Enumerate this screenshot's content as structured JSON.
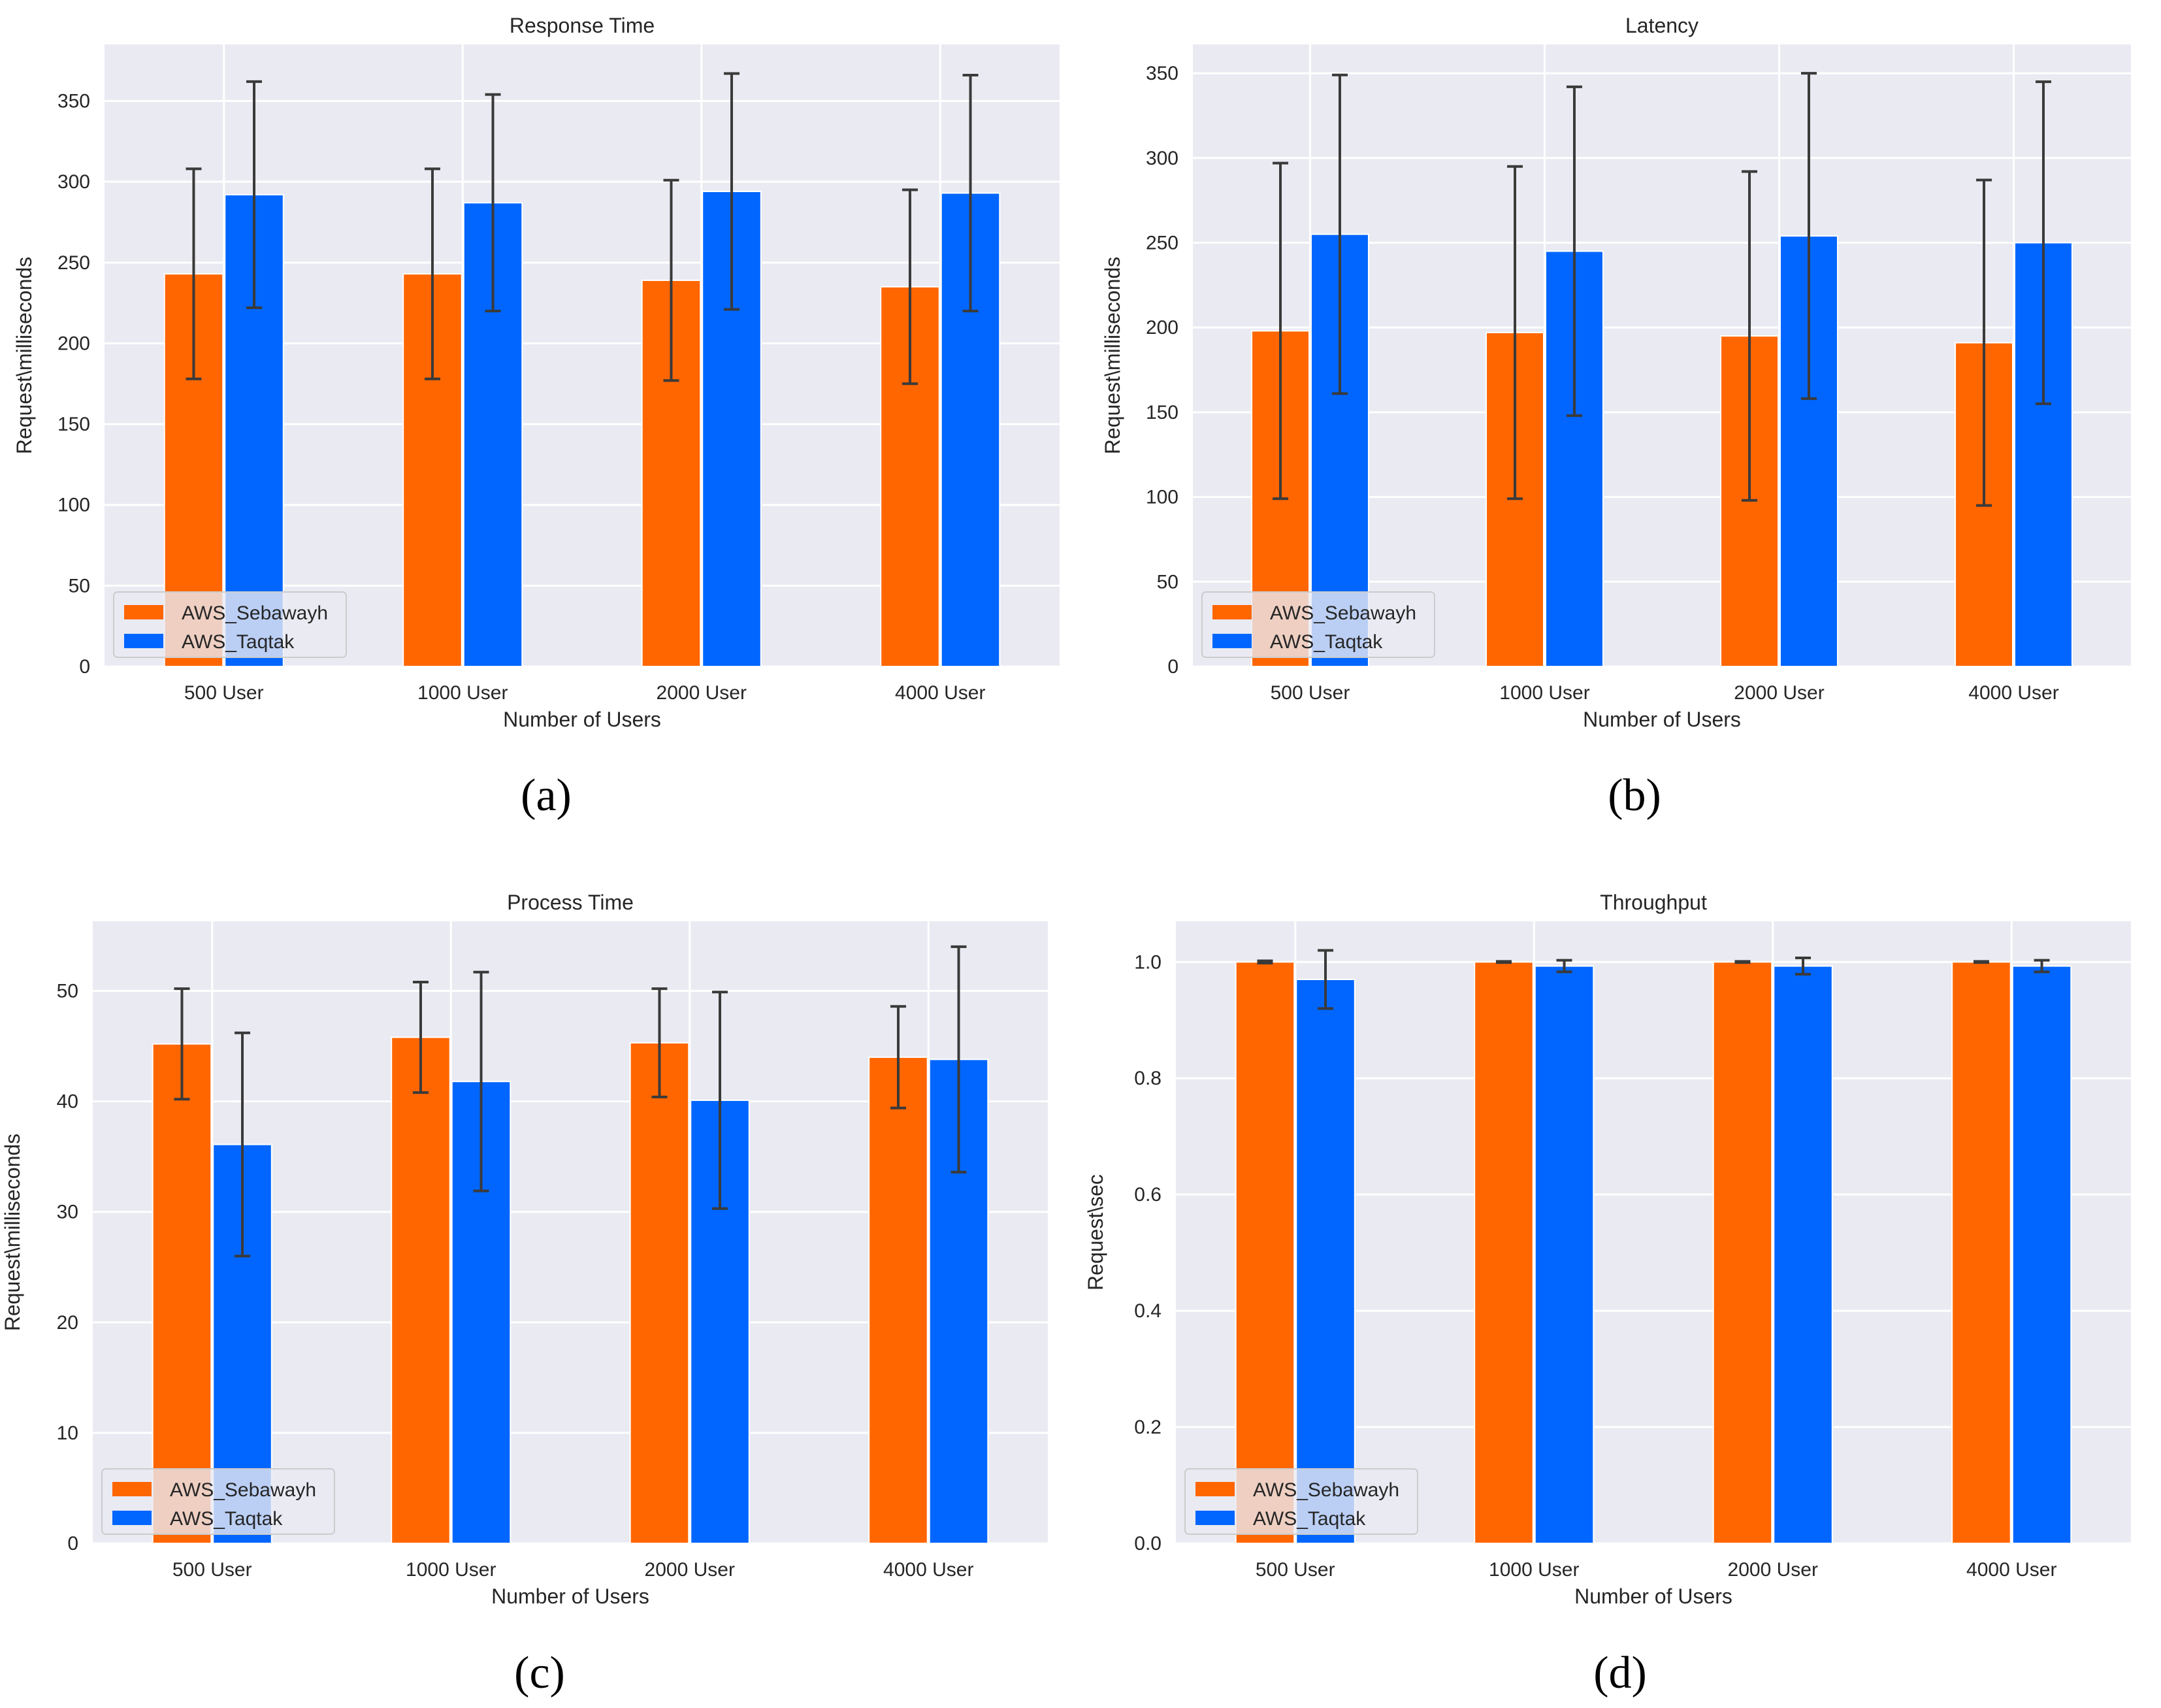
{
  "colors": {
    "AWS_Sebawayh": "#ff6600",
    "AWS_Taqtak": "#0066ff"
  },
  "chart_data": [
    {
      "type": "bar",
      "panel": "(a)",
      "title": "Response Time",
      "xlabel": "Number of Users",
      "ylabel": "Request\\milliseconds",
      "categories": [
        "500 User",
        "1000 User",
        "2000 User",
        "4000 User"
      ],
      "ylim": [
        0,
        385
      ],
      "yticks": [
        0,
        50,
        100,
        150,
        200,
        250,
        300,
        350
      ],
      "decimals": 0,
      "legend": "lower-left",
      "grid": true,
      "series": [
        {
          "name": "AWS_Sebawayh",
          "values": [
            243,
            243,
            239,
            235
          ],
          "errors": [
            65,
            65,
            62,
            60
          ]
        },
        {
          "name": "AWS_Taqtak",
          "values": [
            292,
            287,
            294,
            293
          ],
          "errors": [
            70,
            67,
            73,
            73
          ]
        }
      ]
    },
    {
      "type": "bar",
      "panel": "(b)",
      "title": "Latency",
      "xlabel": "Number of Users",
      "ylabel": "Request\\milliseconds",
      "categories": [
        "500 User",
        "1000 User",
        "2000 User",
        "4000 User"
      ],
      "ylim": [
        0,
        367
      ],
      "yticks": [
        0,
        50,
        100,
        150,
        200,
        250,
        300,
        350
      ],
      "decimals": 0,
      "legend": "lower-left",
      "grid": true,
      "series": [
        {
          "name": "AWS_Sebawayh",
          "values": [
            198,
            197,
            195,
            191
          ],
          "errors": [
            99,
            98,
            97,
            96
          ]
        },
        {
          "name": "AWS_Taqtak",
          "values": [
            255,
            245,
            254,
            250
          ],
          "errors": [
            94,
            97,
            96,
            95
          ]
        }
      ]
    },
    {
      "type": "bar",
      "panel": "(c)",
      "title": "Process Time",
      "xlabel": "Number of Users",
      "ylabel": "Request\\milliseconds",
      "categories": [
        "500 User",
        "1000 User",
        "2000 User",
        "4000 User"
      ],
      "ylim": [
        0,
        56.3
      ],
      "yticks": [
        0,
        10,
        20,
        30,
        40,
        50
      ],
      "decimals": 0,
      "legend": "lower-left",
      "grid": true,
      "series": [
        {
          "name": "AWS_Sebawayh",
          "values": [
            45.2,
            45.8,
            45.3,
            44.0
          ],
          "errors": [
            5.0,
            5.0,
            4.9,
            4.6
          ]
        },
        {
          "name": "AWS_Taqtak",
          "values": [
            36.1,
            41.8,
            40.1,
            43.8
          ],
          "errors": [
            10.1,
            9.9,
            9.8,
            10.2
          ]
        }
      ]
    },
    {
      "type": "bar",
      "panel": "(d)",
      "title": "Throughput",
      "xlabel": "Number of Users",
      "ylabel": "Request\\sec",
      "categories": [
        "500 User",
        "1000 User",
        "2000 User",
        "4000 User"
      ],
      "ylim": [
        0,
        1.07
      ],
      "yticks": [
        0.0,
        0.2,
        0.4,
        0.6,
        0.8,
        1.0
      ],
      "decimals": 1,
      "legend": "lower-left",
      "grid": true,
      "series": [
        {
          "name": "AWS_Sebawayh",
          "values": [
            1.0,
            1.0,
            1.0,
            1.0
          ],
          "errors": [
            0.002,
            0.001,
            0.001,
            0.001
          ]
        },
        {
          "name": "AWS_Taqtak",
          "values": [
            0.97,
            0.993,
            0.993,
            0.993
          ],
          "errors": [
            0.05,
            0.01,
            0.014,
            0.01
          ]
        }
      ]
    }
  ]
}
